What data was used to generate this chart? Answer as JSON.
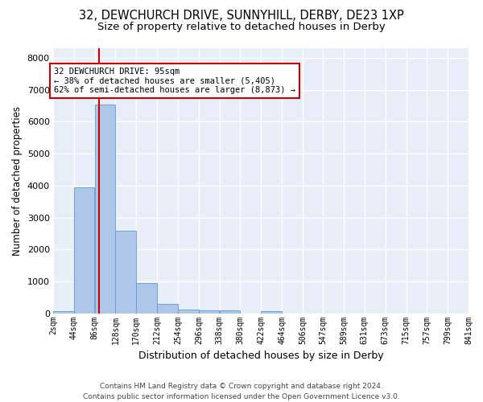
{
  "title_line1": "32, DEWCHURCH DRIVE, SUNNYHILL, DERBY, DE23 1XP",
  "title_line2": "Size of property relative to detached houses in Derby",
  "xlabel": "Distribution of detached houses by size in Derby",
  "ylabel": "Number of detached properties",
  "bar_color": "#aec6e8",
  "bar_edge_color": "#5b9bd5",
  "background_color": "#e8eef7",
  "grid_color": "#ffffff",
  "annotation_text": "32 DEWCHURCH DRIVE: 95sqm\n← 38% of detached houses are smaller (5,405)\n62% of semi-detached houses are larger (8,873) →",
  "vline_x": 95,
  "vline_color": "#cc0000",
  "bins": [
    2,
    44,
    86,
    128,
    170,
    212,
    254,
    296,
    338,
    380,
    422,
    464,
    506,
    547,
    589,
    631,
    673,
    715,
    757,
    799,
    841
  ],
  "bar_heights": [
    70,
    3950,
    6550,
    2600,
    960,
    310,
    130,
    100,
    100,
    0,
    80,
    0,
    0,
    0,
    0,
    0,
    0,
    0,
    0,
    0
  ],
  "tick_labels": [
    "2sqm",
    "44sqm",
    "86sqm",
    "128sqm",
    "170sqm",
    "212sqm",
    "254sqm",
    "296sqm",
    "338sqm",
    "380sqm",
    "422sqm",
    "464sqm",
    "506sqm",
    "547sqm",
    "589sqm",
    "631sqm",
    "673sqm",
    "715sqm",
    "757sqm",
    "799sqm",
    "841sqm"
  ],
  "ylim": [
    0,
    8300
  ],
  "yticks": [
    0,
    1000,
    2000,
    3000,
    4000,
    5000,
    6000,
    7000,
    8000
  ],
  "footer_text": "Contains HM Land Registry data © Crown copyright and database right 2024.\nContains public sector information licensed under the Open Government Licence v3.0.",
  "title_fontsize": 10.5,
  "subtitle_fontsize": 9.5,
  "ylabel_fontsize": 8.5,
  "xlabel_fontsize": 9,
  "tick_fontsize": 7,
  "footer_fontsize": 6.5,
  "annot_fontsize": 7.5
}
